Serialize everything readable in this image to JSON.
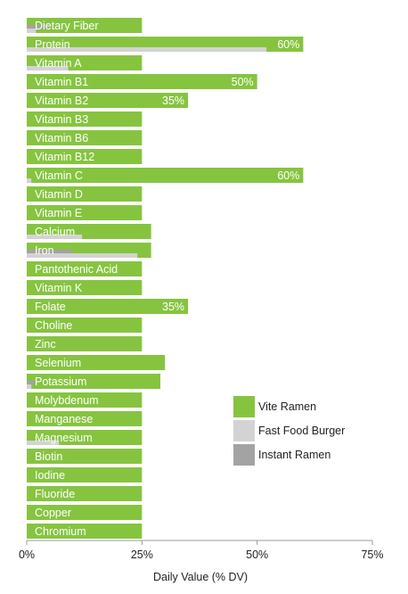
{
  "chart_data": {
    "type": "bar",
    "orientation": "horizontal",
    "xlabel": "Daily Value (% DV)",
    "ylabel": "",
    "xlim": [
      0,
      75
    ],
    "x_ticks": [
      "0%",
      "25%",
      "50%",
      "75%"
    ],
    "x_tick_values": [
      0,
      25,
      50,
      75
    ],
    "grid": false,
    "legend_position": "right-middle",
    "categories": [
      "Dietary Fiber",
      "Protein",
      "Vitamin A",
      "Vitamin B1",
      "Vitamin B2",
      "Vitamin B3",
      "Vitamin B6",
      "Vitamin B12",
      "Vitamin C",
      "Vitamin D",
      "Vitamin E",
      "Calcium",
      "Iron",
      "Pantothenic Acid",
      "Vitamin K",
      "Folate",
      "Choline",
      "Zinc",
      "Selenium",
      "Potassium",
      "Molybdenum",
      "Manganese",
      "Magnesium",
      "Biotin",
      "Iodine",
      "Fluoride",
      "Copper",
      "Chromium"
    ],
    "series": [
      {
        "name": "Vite Ramen",
        "color": "#86c440",
        "values": [
          25,
          60,
          25,
          50,
          35,
          25,
          25,
          25,
          60,
          25,
          25,
          27,
          27,
          25,
          25,
          35,
          25,
          25,
          30,
          29,
          25,
          25,
          25,
          25,
          25,
          25,
          25,
          25
        ]
      },
      {
        "name": "Fast Food Burger",
        "color": "#d3d3d3",
        "values": [
          2,
          52,
          9,
          0,
          0,
          0,
          0,
          0,
          1,
          0,
          0,
          12,
          24,
          0,
          0,
          0,
          0,
          0,
          0,
          1,
          0,
          0,
          7,
          0,
          0,
          0,
          0,
          0
        ]
      },
      {
        "name": "Instant Ramen",
        "color": "#a3a3a3",
        "values": [
          5,
          0,
          0,
          0,
          0,
          0,
          0,
          0,
          0,
          0,
          0,
          0,
          10,
          0,
          0,
          0,
          0,
          0,
          0,
          2,
          0,
          0,
          0,
          0,
          0,
          0,
          0,
          0
        ]
      }
    ],
    "data_labels": [
      {
        "category": "Protein",
        "text": "60%"
      },
      {
        "category": "Vitamin B1",
        "text": "50%"
      },
      {
        "category": "Vitamin B2",
        "text": "35%"
      },
      {
        "category": "Vitamin C",
        "text": "60%"
      },
      {
        "category": "Folate",
        "text": "35%"
      }
    ]
  }
}
